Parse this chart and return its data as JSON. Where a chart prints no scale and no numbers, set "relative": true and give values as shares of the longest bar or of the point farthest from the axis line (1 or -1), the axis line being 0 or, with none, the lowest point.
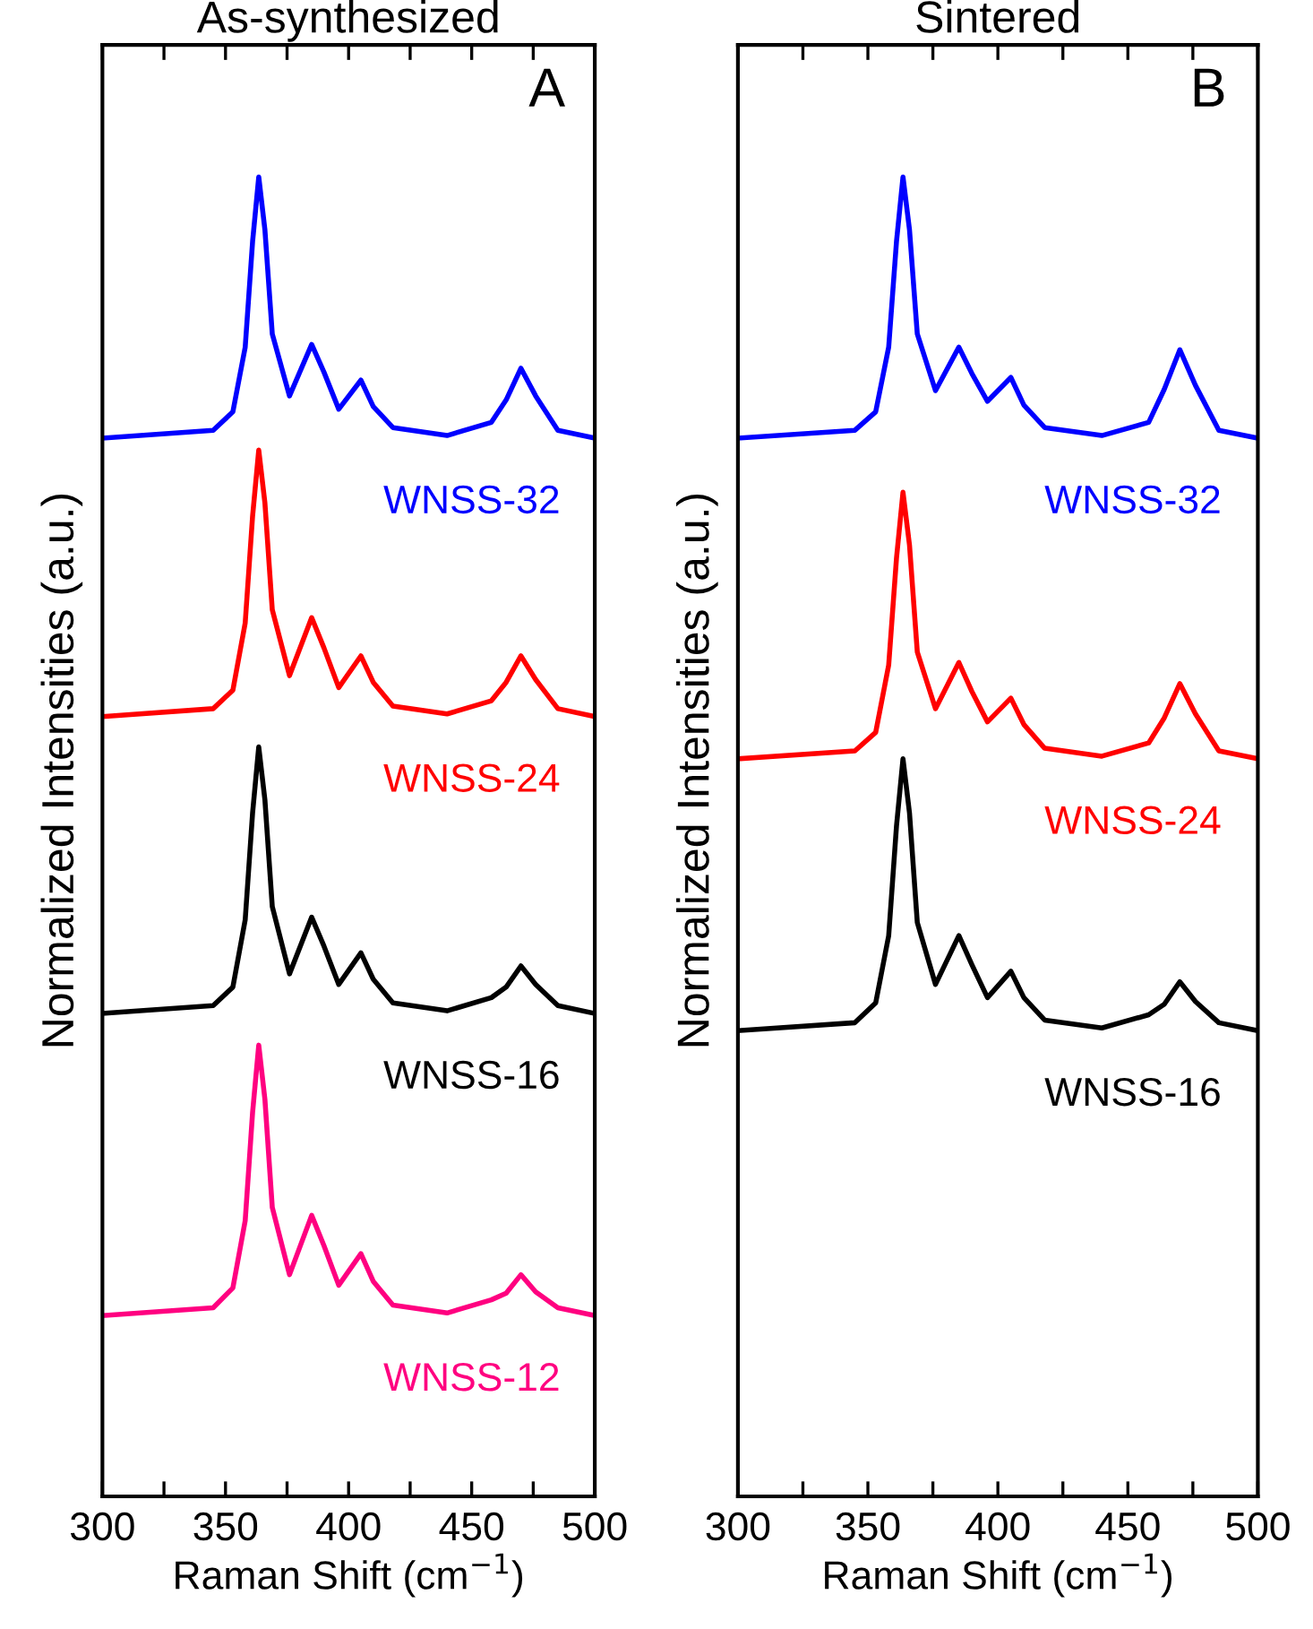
{
  "chart_data": [
    {
      "type": "line",
      "title": "As-synthesized",
      "xlabel": "Raman Shift (cm$^{−1}$)",
      "ylabel": "Normalized Intensities (a.u.)",
      "relative": true,
      "tick_labels": "x",
      "legend": false,
      "grid": false,
      "line_style": "solid",
      "annotations": [
        "A"
      ],
      "x": [
        300,
        345,
        353,
        358,
        361,
        363.5,
        366,
        369,
        376,
        385,
        390,
        396,
        405,
        410,
        418,
        440,
        458,
        464,
        470,
        476,
        485,
        500
      ],
      "xlim": [
        300,
        500
      ],
      "xticks": [
        300,
        {
          "value": 325,
          "label": null
        },
        350,
        {
          "value": 375,
          "label": null
        },
        400,
        {
          "value": 425,
          "label": null
        },
        450,
        {
          "value": 475,
          "label": null
        },
        500
      ],
      "series": [
        {
          "name": "WNSS-32",
          "color": "#0000ff",
          "values": [
            0.802,
            0.808,
            0.822,
            0.871,
            0.951,
            1.0,
            0.96,
            0.881,
            0.834,
            0.873,
            0.852,
            0.824,
            0.846,
            0.826,
            0.81,
            0.804,
            0.814,
            0.831,
            0.855,
            0.834,
            0.808,
            0.802
          ]
        },
        {
          "name": "WNSS-24",
          "color": "#ff0000",
          "values": [
            0.591,
            0.597,
            0.611,
            0.662,
            0.743,
            0.793,
            0.753,
            0.672,
            0.622,
            0.666,
            0.643,
            0.613,
            0.637,
            0.617,
            0.599,
            0.593,
            0.603,
            0.617,
            0.637,
            0.619,
            0.597,
            0.591
          ]
        },
        {
          "name": "WNSS-16",
          "color": "#000000",
          "values": [
            0.366,
            0.372,
            0.386,
            0.437,
            0.518,
            0.568,
            0.528,
            0.447,
            0.396,
            0.439,
            0.417,
            0.388,
            0.412,
            0.392,
            0.374,
            0.368,
            0.378,
            0.386,
            0.402,
            0.388,
            0.372,
            0.366
          ]
        },
        {
          "name": "WNSS-12",
          "color": "#ff0080",
          "values": [
            0.137,
            0.143,
            0.158,
            0.209,
            0.291,
            0.342,
            0.301,
            0.219,
            0.168,
            0.213,
            0.19,
            0.16,
            0.184,
            0.163,
            0.145,
            0.139,
            0.149,
            0.154,
            0.168,
            0.155,
            0.143,
            0.137
          ]
        }
      ]
    },
    {
      "type": "line",
      "title": "Sintered",
      "xlabel": "Raman Shift (cm$^{−1}$)",
      "ylabel": "Normalized Intensities (a.u.)",
      "relative": true,
      "tick_labels": "x",
      "legend": false,
      "grid": false,
      "line_style": "solid",
      "annotations": [
        "B"
      ],
      "x": [
        300,
        345,
        353,
        358,
        361,
        363.5,
        366,
        369,
        376,
        385,
        390,
        396,
        405,
        410,
        418,
        440,
        458,
        464,
        470,
        476,
        485,
        500
      ],
      "xlim": [
        300,
        500
      ],
      "xticks": [
        300,
        {
          "value": 325,
          "label": null
        },
        350,
        {
          "value": 375,
          "label": null
        },
        400,
        {
          "value": 425,
          "label": null
        },
        450,
        {
          "value": 475,
          "label": null
        },
        500
      ],
      "series": [
        {
          "name": "WNSS-32",
          "color": "#0000ff",
          "values": [
            0.802,
            0.808,
            0.822,
            0.871,
            0.951,
            1.0,
            0.96,
            0.881,
            0.838,
            0.871,
            0.851,
            0.83,
            0.848,
            0.827,
            0.81,
            0.804,
            0.814,
            0.839,
            0.869,
            0.842,
            0.808,
            0.802
          ]
        },
        {
          "name": "WNSS-24",
          "color": "#ff0000",
          "values": [
            0.559,
            0.565,
            0.579,
            0.63,
            0.711,
            0.761,
            0.721,
            0.64,
            0.597,
            0.632,
            0.61,
            0.587,
            0.605,
            0.585,
            0.567,
            0.561,
            0.571,
            0.59,
            0.616,
            0.593,
            0.565,
            0.559
          ]
        },
        {
          "name": "WNSS-16",
          "color": "#000000",
          "values": [
            0.353,
            0.359,
            0.374,
            0.425,
            0.508,
            0.559,
            0.518,
            0.435,
            0.388,
            0.425,
            0.403,
            0.378,
            0.398,
            0.378,
            0.361,
            0.355,
            0.365,
            0.373,
            0.39,
            0.375,
            0.359,
            0.353
          ]
        }
      ]
    }
  ]
}
